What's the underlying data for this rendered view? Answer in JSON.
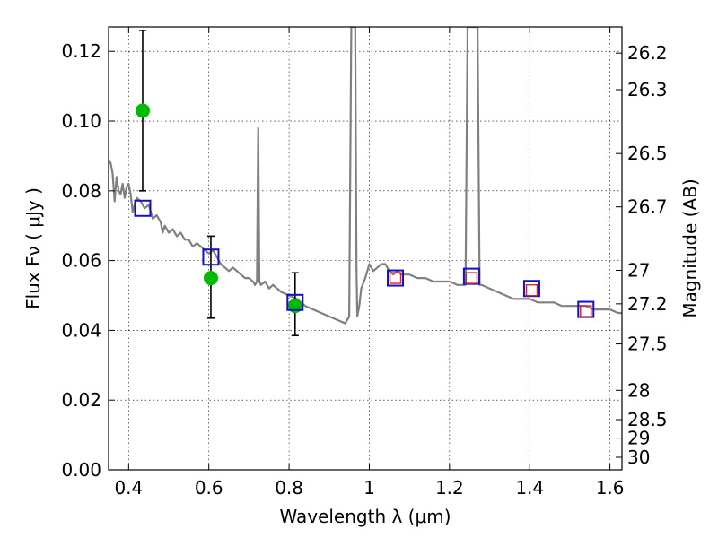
{
  "chart_data": {
    "type": "scatter",
    "xlabel": "Wavelength  λ (μm)",
    "ylabel": "Flux  Fν  ( μJy )",
    "ylabel_right": "Magnitude (AB)",
    "xlim": [
      0.35,
      1.63
    ],
    "ylim": [
      0.0,
      0.127
    ],
    "xticks": [
      0.4,
      0.6,
      0.8,
      1.0,
      1.2,
      1.4,
      1.6
    ],
    "xtick_labels": [
      "0.4",
      "0.6",
      "0.8",
      "1",
      "1.2",
      "1.4",
      "1.6"
    ],
    "yticks": [
      0.0,
      0.02,
      0.04,
      0.06,
      0.08,
      0.1,
      0.12
    ],
    "ytick_labels": [
      "0.00",
      "0.02",
      "0.04",
      "0.06",
      "0.08",
      "0.10",
      "0.12"
    ],
    "right_ticks": [
      {
        "label": "26.2",
        "flux": 0.1195
      },
      {
        "label": "26.3",
        "flux": 0.109
      },
      {
        "label": "26.5",
        "flux": 0.0907
      },
      {
        "label": "26.7",
        "flux": 0.0754
      },
      {
        "label": "27",
        "flux": 0.0572
      },
      {
        "label": "27.2",
        "flux": 0.0476
      },
      {
        "label": "27.5",
        "flux": 0.0361
      },
      {
        "label": "28",
        "flux": 0.0228
      },
      {
        "label": "28.5",
        "flux": 0.0144
      },
      {
        "label": "29",
        "flux": 0.0091
      },
      {
        "label": "30",
        "flux": 0.0036
      }
    ],
    "grid": true,
    "series": [
      {
        "kind": "line",
        "color": "#808080",
        "x": [
          0.35,
          0.355,
          0.36,
          0.365,
          0.37,
          0.375,
          0.38,
          0.385,
          0.39,
          0.395,
          0.4,
          0.405,
          0.41,
          0.415,
          0.42,
          0.43,
          0.44,
          0.45,
          0.46,
          0.47,
          0.48,
          0.485,
          0.49,
          0.5,
          0.51,
          0.52,
          0.53,
          0.54,
          0.55,
          0.56,
          0.57,
          0.58,
          0.59,
          0.6,
          0.61,
          0.62,
          0.63,
          0.64,
          0.65,
          0.66,
          0.67,
          0.68,
          0.69,
          0.7,
          0.71,
          0.715,
          0.72,
          0.723,
          0.726,
          0.73,
          0.74,
          0.75,
          0.76,
          0.78,
          0.8,
          0.82,
          0.84,
          0.86,
          0.88,
          0.9,
          0.92,
          0.94,
          0.95,
          0.955,
          0.96,
          0.962,
          0.965,
          0.968,
          0.97,
          0.975,
          0.98,
          0.99,
          1.0,
          1.01,
          1.02,
          1.03,
          1.04,
          1.05,
          1.06,
          1.07,
          1.08,
          1.1,
          1.12,
          1.14,
          1.16,
          1.18,
          1.2,
          1.22,
          1.24,
          1.245,
          1.25,
          1.27,
          1.275,
          1.28,
          1.3,
          1.32,
          1.34,
          1.36,
          1.38,
          1.4,
          1.42,
          1.44,
          1.46,
          1.48,
          1.5,
          1.52,
          1.54,
          1.56,
          1.58,
          1.6,
          1.62,
          1.63
        ],
        "y": [
          0.089,
          0.088,
          0.085,
          0.077,
          0.084,
          0.08,
          0.079,
          0.082,
          0.078,
          0.081,
          0.082,
          0.079,
          0.074,
          0.076,
          0.078,
          0.077,
          0.075,
          0.076,
          0.072,
          0.073,
          0.071,
          0.068,
          0.07,
          0.068,
          0.069,
          0.067,
          0.068,
          0.066,
          0.066,
          0.064,
          0.065,
          0.064,
          0.063,
          0.062,
          0.063,
          0.061,
          0.059,
          0.058,
          0.057,
          0.058,
          0.057,
          0.056,
          0.055,
          0.055,
          0.054,
          0.053,
          0.054,
          0.098,
          0.054,
          0.053,
          0.054,
          0.052,
          0.053,
          0.051,
          0.05,
          0.049,
          0.047,
          0.046,
          0.045,
          0.044,
          0.043,
          0.042,
          0.044,
          0.127,
          0.127,
          0.127,
          0.127,
          0.058,
          0.044,
          0.047,
          0.052,
          0.055,
          0.059,
          0.057,
          0.058,
          0.059,
          0.059,
          0.057,
          0.056,
          0.057,
          0.056,
          0.056,
          0.055,
          0.055,
          0.054,
          0.054,
          0.054,
          0.053,
          0.053,
          0.127,
          0.127,
          0.127,
          0.053,
          0.053,
          0.052,
          0.051,
          0.05,
          0.049,
          0.049,
          0.049,
          0.048,
          0.048,
          0.048,
          0.047,
          0.047,
          0.047,
          0.047,
          0.046,
          0.046,
          0.046,
          0.045,
          0.045
        ]
      },
      {
        "kind": "points",
        "marker": "circle",
        "color": "#00bb00",
        "x": [
          0.435,
          0.605,
          0.815
        ],
        "y": [
          0.103,
          0.055,
          0.047
        ],
        "yerr_low": [
          0.08,
          0.0435,
          0.0385
        ],
        "yerr_high": [
          0.126,
          0.067,
          0.0565
        ]
      },
      {
        "kind": "points",
        "marker": "square",
        "color": "#1010cc",
        "x": [
          0.435,
          0.605,
          0.815,
          1.065,
          1.255,
          1.405,
          1.54
        ],
        "y": [
          0.075,
          0.061,
          0.048,
          0.055,
          0.0555,
          0.052,
          0.046
        ]
      },
      {
        "kind": "points",
        "marker": "square-small",
        "color": "#dd2222",
        "x": [
          1.065,
          1.255,
          1.405,
          1.54
        ],
        "y": [
          0.055,
          0.055,
          0.0515,
          0.0455
        ]
      }
    ]
  }
}
